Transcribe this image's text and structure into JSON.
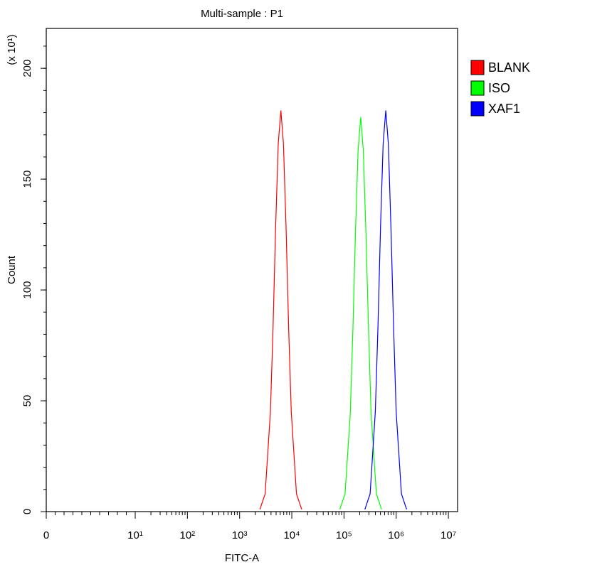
{
  "chart_data": {
    "type": "histogram-overlay",
    "title": "Multi-sample : P1",
    "x_label": "FITC-A",
    "y_label": "Count",
    "y_multiplier": "(x 10¹)",
    "xscale": "symlog",
    "xlim": [
      0,
      15000000
    ],
    "xticks": [
      {
        "value": 0,
        "label": "0"
      },
      {
        "value": 10,
        "label": "10¹"
      },
      {
        "value": 100,
        "label": "10²"
      },
      {
        "value": 1000,
        "label": "10³"
      },
      {
        "value": 10000,
        "label": "10⁴"
      },
      {
        "value": 100000,
        "label": "10⁵"
      },
      {
        "value": 1000000,
        "label": "10⁶"
      },
      {
        "value": 10000000,
        "label": "10⁷"
      }
    ],
    "ylim": [
      0,
      218
    ],
    "yticks": [
      0,
      50,
      100,
      150,
      200
    ],
    "legend": "outside-right",
    "series": [
      {
        "name": "BLANK",
        "color": "#ff0000",
        "x": [
          2450,
          3090,
          3890,
          4370,
          4900,
          5500,
          6170,
          6920,
          7760,
          8710,
          9770,
          12300,
          15500
        ],
        "values": [
          1,
          8,
          45,
          83,
          128,
          166,
          181,
          166,
          128,
          83,
          45,
          8,
          1
        ]
      },
      {
        "name": "ISO",
        "color": "#00ff00",
        "x": [
          83180,
          104700,
          131800,
          147900,
          166000,
          186200,
          208900,
          234400,
          263000,
          295100,
          331100,
          416900,
          524800
        ],
        "values": [
          1,
          8,
          44,
          82,
          126,
          163,
          178,
          163,
          126,
          82,
          44,
          8,
          1
        ]
      },
      {
        "name": "XAF1",
        "color": "#0000ff",
        "x": [
          251200,
          316200,
          398100,
          446700,
          501200,
          562300,
          631000,
          707900,
          794300,
          891300,
          1000000,
          1259000,
          1585000
        ],
        "values": [
          1,
          8,
          45,
          83,
          128,
          166,
          181,
          166,
          128,
          83,
          45,
          8,
          1
        ]
      }
    ]
  }
}
